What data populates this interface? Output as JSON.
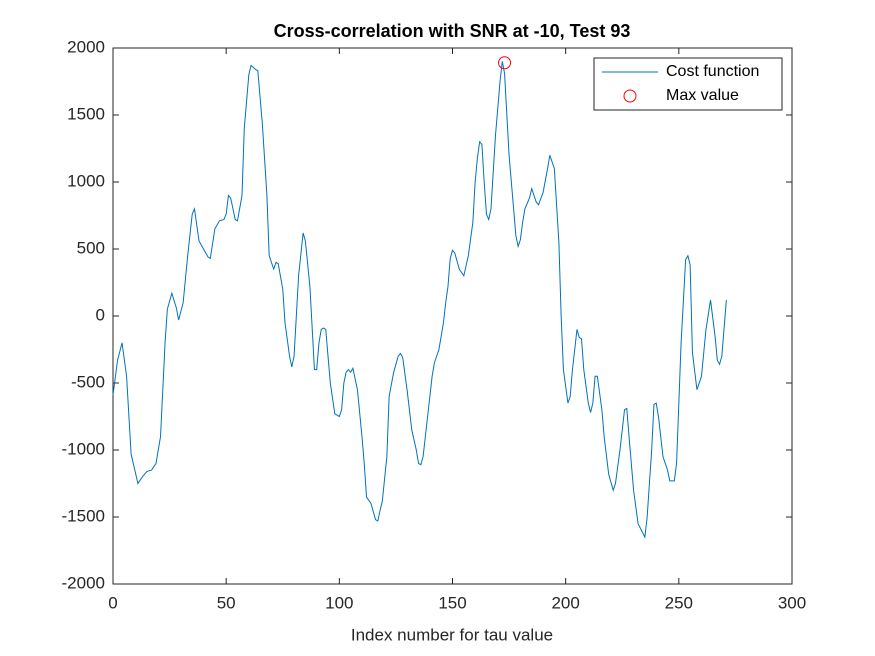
{
  "chart_data": {
    "type": "line",
    "title": "Cross-correlation with SNR at -10, Test 93",
    "x_label": "Index number for tau value",
    "xlim": [
      0,
      300
    ],
    "xticks": [
      0,
      50,
      100,
      150,
      200,
      250,
      300
    ],
    "ylim": [
      -2000,
      2000
    ],
    "yticks": [
      -2000,
      -1500,
      -1000,
      -500,
      0,
      500,
      1000,
      1500,
      2000
    ],
    "grid": false,
    "legend": "upper-right",
    "series": [
      {
        "name": "Cost function",
        "color": "#0072bd",
        "marker": "none",
        "x": [
          0,
          2,
          4,
          6,
          8,
          11,
          13,
          15,
          17,
          19,
          21,
          22,
          23,
          24,
          26,
          28,
          29,
          31,
          33,
          35,
          36,
          38,
          40,
          42,
          43,
          45,
          47,
          49,
          50,
          51,
          52,
          54,
          55,
          57,
          58,
          60,
          61,
          63,
          64,
          66,
          68,
          69,
          71,
          72,
          73,
          75,
          76,
          78,
          79,
          80,
          82,
          84,
          85,
          87,
          89,
          90,
          91,
          92,
          93,
          94,
          96,
          98,
          100,
          101,
          102,
          103,
          104,
          105,
          106,
          108,
          110,
          111,
          112,
          114,
          116,
          117,
          118,
          119,
          121,
          122,
          124,
          126,
          127,
          128,
          130,
          132,
          134,
          135,
          136,
          137,
          139,
          141,
          142,
          144,
          146,
          147,
          148,
          149,
          150,
          151,
          153,
          155,
          157,
          159,
          160,
          161,
          162,
          163,
          164,
          165,
          166,
          167,
          169,
          170,
          171,
          172,
          173,
          175,
          177,
          178,
          179,
          180,
          181,
          182,
          184,
          185,
          186,
          187,
          188,
          190,
          192,
          193,
          195,
          197,
          198,
          199,
          201,
          202,
          203,
          205,
          206,
          207,
          208,
          210,
          211,
          212,
          213,
          214,
          216,
          217,
          219,
          221,
          222,
          224,
          225,
          226,
          227,
          228,
          230,
          232,
          235,
          236,
          238,
          239,
          240,
          241,
          243,
          245,
          246,
          248,
          249,
          251,
          253,
          254,
          255,
          256,
          258,
          260,
          262,
          264,
          266,
          267,
          268,
          269,
          271
        ],
        "values": [
          -590,
          -330,
          -200,
          -450,
          -1030,
          -1250,
          -1200,
          -1160,
          -1150,
          -1100,
          -900,
          -550,
          -200,
          50,
          170,
          60,
          -30,
          100,
          450,
          760,
          800,
          560,
          500,
          440,
          430,
          650,
          710,
          720,
          760,
          900,
          880,
          720,
          710,
          900,
          1400,
          1800,
          1870,
          1840,
          1830,
          1430,
          900,
          450,
          350,
          400,
          390,
          200,
          -50,
          -300,
          -380,
          -300,
          300,
          620,
          560,
          220,
          -400,
          -400,
          -200,
          -100,
          -90,
          -100,
          -500,
          -730,
          -750,
          -700,
          -500,
          -420,
          -400,
          -420,
          -390,
          -550,
          -900,
          -1100,
          -1350,
          -1400,
          -1520,
          -1530,
          -1450,
          -1380,
          -1050,
          -600,
          -420,
          -300,
          -280,
          -310,
          -560,
          -850,
          -1000,
          -1100,
          -1110,
          -1050,
          -750,
          -450,
          -350,
          -250,
          -50,
          100,
          220,
          430,
          490,
          470,
          350,
          300,
          450,
          700,
          1000,
          1180,
          1300,
          1280,
          1000,
          760,
          720,
          800,
          1350,
          1550,
          1750,
          1900,
          1810,
          1200,
          800,
          600,
          520,
          570,
          700,
          800,
          880,
          950,
          900,
          850,
          830,
          920,
          1100,
          1200,
          1100,
          550,
          0,
          -400,
          -650,
          -600,
          -400,
          -100,
          -160,
          -170,
          -400,
          -650,
          -720,
          -650,
          -450,
          -450,
          -700,
          -900,
          -1180,
          -1300,
          -1250,
          -1000,
          -850,
          -700,
          -690,
          -900,
          -1300,
          -1550,
          -1650,
          -1500,
          -1000,
          -660,
          -650,
          -750,
          -1050,
          -1150,
          -1230,
          -1230,
          -1100,
          -200,
          420,
          450,
          380,
          -270,
          -550,
          -450,
          -100,
          120,
          -150,
          -330,
          -360,
          -300,
          120
        ]
      },
      {
        "name": "Max value",
        "color": "#ff0000",
        "marker": "circle",
        "x": [
          173
        ],
        "values": [
          1890
        ]
      }
    ]
  }
}
